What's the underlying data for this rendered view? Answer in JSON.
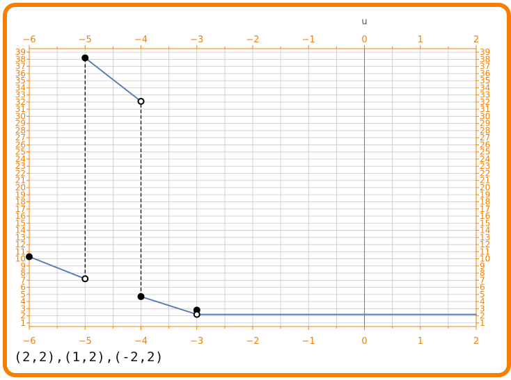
{
  "chart_data": {
    "type": "line",
    "top_axis_label": "u",
    "xlim": [
      -6,
      2
    ],
    "ylim": [
      0.5,
      39.5
    ],
    "x_ticks": [
      -6,
      -5,
      -4,
      -3,
      -2,
      -1,
      0,
      1,
      2
    ],
    "y_ticks": [
      1,
      2,
      3,
      4,
      5,
      6,
      7,
      8,
      9,
      10,
      11,
      12,
      13,
      14,
      15,
      16,
      17,
      18,
      19,
      20,
      21,
      22,
      23,
      24,
      25,
      26,
      27,
      28,
      29,
      30,
      31,
      32,
      33,
      34,
      35,
      36,
      37,
      38,
      39
    ],
    "grid": true,
    "frame_ticks": "all four sides",
    "segments": [
      {
        "x": [
          -6,
          -5
        ],
        "y": [
          10.3,
          7.2
        ]
      },
      {
        "x": [
          -5,
          -4
        ],
        "y": [
          38.2,
          32.1
        ]
      },
      {
        "x": [
          -4,
          -3
        ],
        "y": [
          4.7,
          2.2
        ]
      },
      {
        "x": [
          -3,
          2
        ],
        "y": [
          2.2,
          2.2
        ]
      }
    ],
    "closed_points": [
      {
        "x": -6,
        "y": 10.3
      },
      {
        "x": -5,
        "y": 38.2
      },
      {
        "x": -4,
        "y": 4.7
      },
      {
        "x": -3,
        "y": 2.8
      }
    ],
    "open_points": [
      {
        "x": -5,
        "y": 7.2
      },
      {
        "x": -4,
        "y": 32.1
      },
      {
        "x": -3,
        "y": 2.2
      }
    ],
    "dashed_verticals": [
      {
        "x": -5,
        "y": [
          7.2,
          38.2
        ]
      },
      {
        "x": -4,
        "y": [
          4.7,
          32.1
        ]
      }
    ],
    "colors": {
      "frame": "#f57f00",
      "ticks": "#f57f00",
      "line": "#5b7fb2",
      "grid": "#c8c8c8",
      "points": "#000000"
    }
  },
  "caption": "(2,2),(1,2),(-2,2)"
}
